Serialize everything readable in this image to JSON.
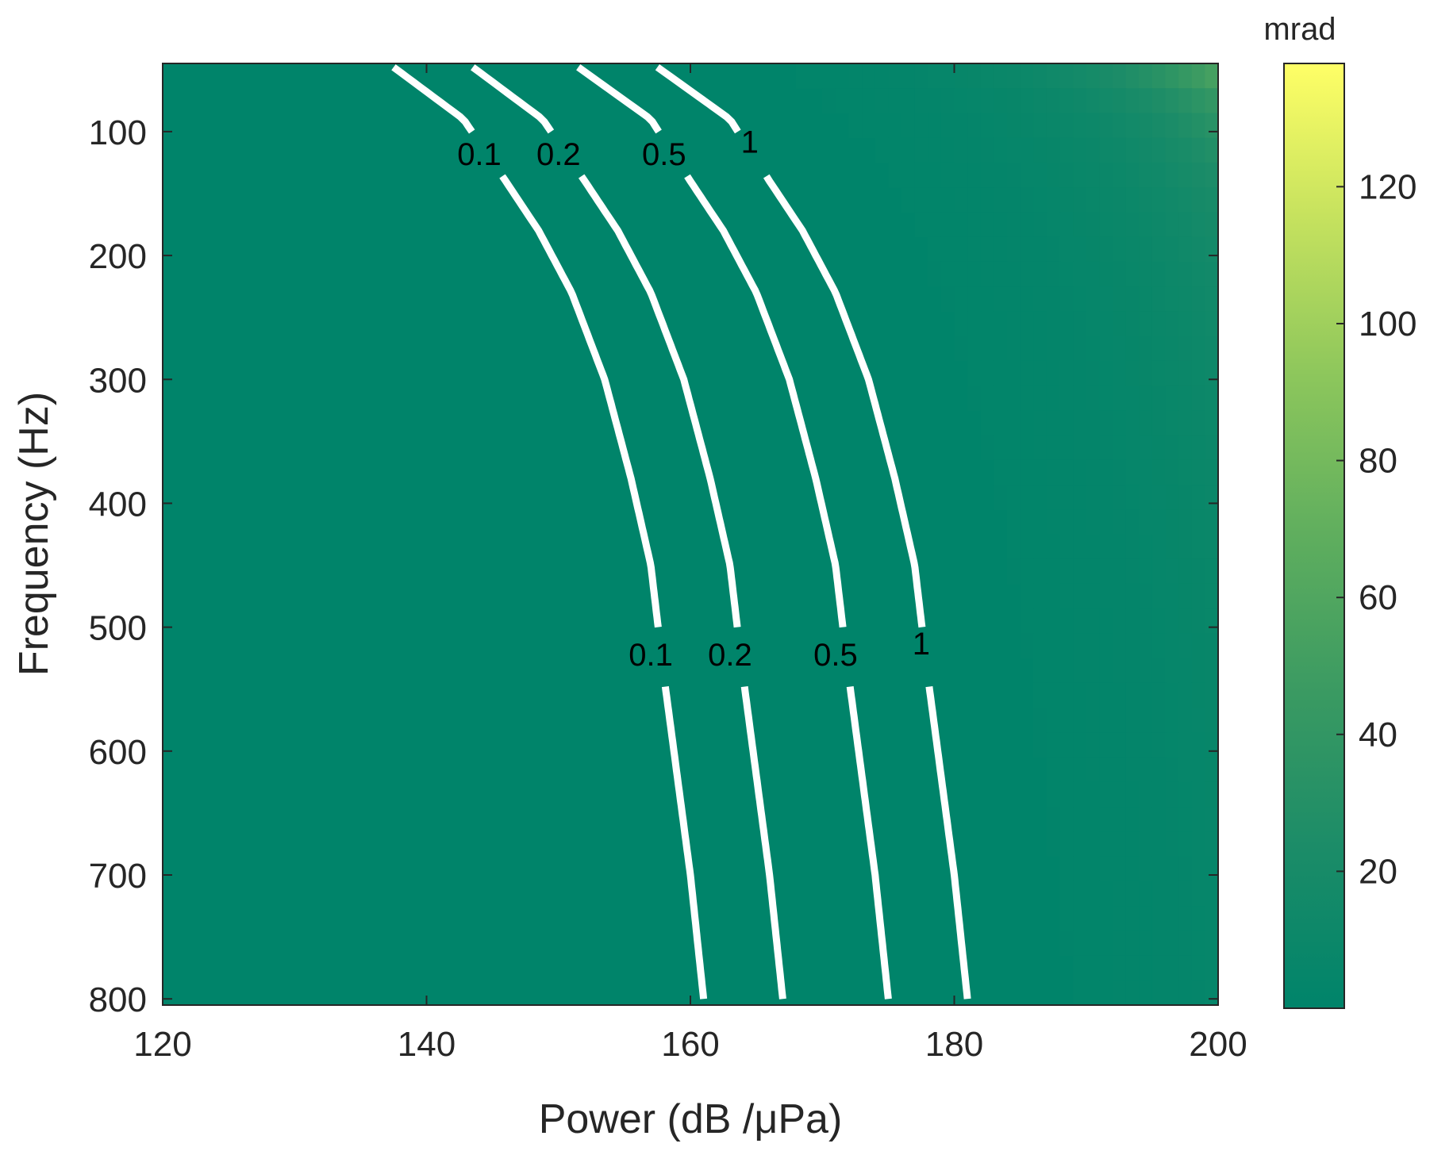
{
  "chart_data": {
    "type": "heatmap",
    "title": "",
    "xlabel": "Power (dB /μPa)",
    "ylabel": "Frequency (Hz)",
    "xlim": [
      120,
      200
    ],
    "ylim": [
      45,
      805
    ],
    "y_reversed": true,
    "xticks": [
      120,
      140,
      160,
      180,
      200
    ],
    "yticks": [
      100,
      200,
      300,
      400,
      500,
      600,
      700,
      800
    ],
    "colorbar": {
      "label": "mrad",
      "range": [
        0,
        138
      ],
      "ticks": [
        20,
        40,
        60,
        80,
        100,
        120
      ],
      "colors": [
        "#00846a",
        "#1b8c68",
        "#3a9a62",
        "#5fae5e",
        "#8cc65c",
        "#c4e15e",
        "#ffff66"
      ]
    },
    "contours": [
      {
        "level": 0.1,
        "label": "0.1",
        "points": [
          [
            137.5,
            48
          ],
          [
            142.8,
            90
          ],
          [
            146.0,
            140
          ],
          [
            148.5,
            180
          ],
          [
            151.0,
            230
          ],
          [
            153.5,
            300
          ],
          [
            155.5,
            380
          ],
          [
            157.0,
            450
          ],
          [
            158.0,
            540
          ],
          [
            159.0,
            620
          ],
          [
            160.0,
            700
          ],
          [
            161.0,
            800
          ]
        ]
      },
      {
        "level": 0.2,
        "label": "0.2",
        "points": [
          [
            143.5,
            48
          ],
          [
            148.8,
            90
          ],
          [
            152.0,
            140
          ],
          [
            154.5,
            180
          ],
          [
            157.0,
            230
          ],
          [
            159.5,
            300
          ],
          [
            161.5,
            380
          ],
          [
            163.0,
            450
          ],
          [
            164.0,
            540
          ],
          [
            165.0,
            620
          ],
          [
            166.0,
            700
          ],
          [
            167.0,
            800
          ]
        ]
      },
      {
        "level": 0.5,
        "label": "0.5",
        "points": [
          [
            151.5,
            48
          ],
          [
            157.0,
            90
          ],
          [
            160.0,
            140
          ],
          [
            162.5,
            180
          ],
          [
            165.0,
            230
          ],
          [
            167.5,
            300
          ],
          [
            169.5,
            380
          ],
          [
            171.0,
            450
          ],
          [
            172.0,
            540
          ],
          [
            173.0,
            620
          ],
          [
            174.0,
            700
          ],
          [
            175.0,
            800
          ]
        ]
      },
      {
        "level": 1,
        "label": "1",
        "points": [
          [
            157.5,
            48
          ],
          [
            163.0,
            90
          ],
          [
            166.0,
            140
          ],
          [
            168.5,
            180
          ],
          [
            171.0,
            230
          ],
          [
            173.5,
            300
          ],
          [
            175.5,
            380
          ],
          [
            177.0,
            450
          ],
          [
            178.0,
            540
          ],
          [
            179.0,
            620
          ],
          [
            180.0,
            700
          ],
          [
            181.0,
            800
          ]
        ]
      }
    ],
    "contour_labels": [
      {
        "text": "0.1",
        "x": 144.0,
        "y": 118
      },
      {
        "text": "0.2",
        "x": 150.0,
        "y": 118
      },
      {
        "text": "0.5",
        "x": 158.0,
        "y": 118
      },
      {
        "text": "1",
        "x": 164.5,
        "y": 108
      },
      {
        "text": "0.1",
        "x": 157.0,
        "y": 522
      },
      {
        "text": "0.2",
        "x": 163.0,
        "y": 522
      },
      {
        "text": "0.5",
        "x": 171.0,
        "y": 522
      },
      {
        "text": "1",
        "x": 177.5,
        "y": 513
      }
    ]
  }
}
